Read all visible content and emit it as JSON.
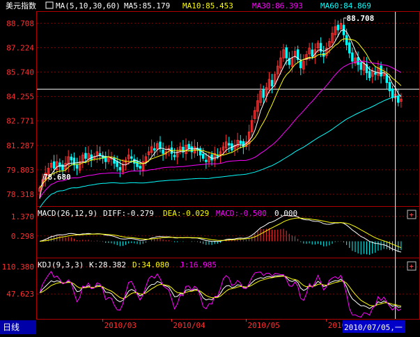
{
  "main_panel": {
    "title": "美元指数",
    "ma_label": "MA(5,10,30,60)",
    "ma5": "MA5:85.179",
    "ma10": "MA10:85.453",
    "ma30": "MA30:86.393",
    "ma60": "MA60:84.869",
    "high_label": "88.708",
    "low_label": "78.680",
    "colors": {
      "ma5": "#ffffff",
      "ma10": "#ffff00",
      "ma30": "#ff00ff",
      "ma60": "#00ffff",
      "up": "#ff3232",
      "down": "#00ffff"
    }
  },
  "macd_panel": {
    "title": "MACD(26,12,9)",
    "diff": "DIFF:-0.279",
    "dea": "DEA:-0.029",
    "macd": "MACD:-0.500",
    "extra": "0.000",
    "expand_button": "+"
  },
  "kdj_panel": {
    "title": "KDJ(9,3,3)",
    "k": "K:28.382",
    "d": "D:34.080",
    "j": "J:16.985",
    "expand_button": "+"
  },
  "bottom_bar": {
    "period_label": "日线",
    "cursor_date": "2010/07/05,一"
  },
  "chart_data": {
    "type": "candlestick",
    "y_ticks_main": [
      "88.708",
      "87.224",
      "85.740",
      "84.255",
      "82.771",
      "81.287",
      "79.803",
      "78.318"
    ],
    "y_ticks_macd": [
      "1.370",
      "0.298"
    ],
    "y_ticks_kdj": [
      "110.380",
      "47.623"
    ],
    "x_ticks": [
      "2010/03",
      "2010/04",
      "2010/05",
      "2010/"
    ],
    "ylim_main": [
      77.6,
      89.4
    ],
    "ylim_macd": [
      -0.9,
      1.9
    ],
    "ylim_kdj": [
      -10,
      130
    ],
    "reference_price": 84.7,
    "cursor_index": 124,
    "closes": [
      78.7,
      79.2,
      79.6,
      79.9,
      80.2,
      79.9,
      80.3,
      80.0,
      79.8,
      80.2,
      80.6,
      80.4,
      80.1,
      79.9,
      80.3,
      80.7,
      80.5,
      80.8,
      80.4,
      80.6,
      80.9,
      80.7,
      80.5,
      80.3,
      80.6,
      80.5,
      80.2,
      80.0,
      79.8,
      80.1,
      80.4,
      80.7,
      80.5,
      80.2,
      80.0,
      79.9,
      80.3,
      80.6,
      80.9,
      81.2,
      81.0,
      81.4,
      81.1,
      80.8,
      80.9,
      81.1,
      80.8,
      80.6,
      80.9,
      81.2,
      80.9,
      81.3,
      81.1,
      80.9,
      81.2,
      81.0,
      80.7,
      80.5,
      80.3,
      80.6,
      80.4,
      80.8,
      80.6,
      80.9,
      81.2,
      81.5,
      81.3,
      81.0,
      81.3,
      81.6,
      81.4,
      81.2,
      81.5,
      82.1,
      82.8,
      83.4,
      84.0,
      84.6,
      84.2,
      84.8,
      85.3,
      84.9,
      85.6,
      86.1,
      86.6,
      87.1,
      86.6,
      86.2,
      86.6,
      87.0,
      86.5,
      86.0,
      86.4,
      86.8,
      87.2,
      86.7,
      87.1,
      87.5,
      87.0,
      86.7,
      87.2,
      87.6,
      88.1,
      88.5,
      88.3,
      88.7,
      88.0,
      87.4,
      86.9,
      86.4,
      86.6,
      86.2,
      85.9,
      86.3,
      85.7,
      85.4,
      85.8,
      85.6,
      86.0,
      85.5,
      85.7,
      85.1,
      84.6,
      84.2,
      84.4,
      83.9,
      84.1
    ]
  }
}
